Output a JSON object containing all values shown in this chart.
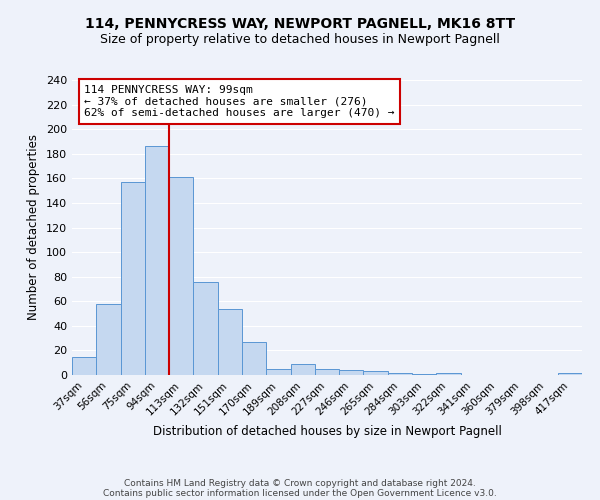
{
  "title1": "114, PENNYCRESS WAY, NEWPORT PAGNELL, MK16 8TT",
  "title2": "Size of property relative to detached houses in Newport Pagnell",
  "xlabel": "Distribution of detached houses by size in Newport Pagnell",
  "ylabel": "Number of detached properties",
  "bin_labels": [
    "37sqm",
    "56sqm",
    "75sqm",
    "94sqm",
    "113sqm",
    "132sqm",
    "151sqm",
    "170sqm",
    "189sqm",
    "208sqm",
    "227sqm",
    "246sqm",
    "265sqm",
    "284sqm",
    "303sqm",
    "322sqm",
    "341sqm",
    "360sqm",
    "379sqm",
    "398sqm",
    "417sqm"
  ],
  "bar_heights": [
    15,
    58,
    157,
    186,
    161,
    76,
    54,
    27,
    5,
    9,
    5,
    4,
    3,
    2,
    1,
    2,
    0,
    0,
    0,
    0,
    2
  ],
  "bar_color": "#c5d8f0",
  "bar_edge_color": "#5a96d4",
  "vline_x": 3.5,
  "vline_color": "#cc0000",
  "annot_line1": "114 PENNYCRESS WAY: 99sqm",
  "annot_line2": "← 37% of detached houses are smaller (276)",
  "annot_line3": "62% of semi-detached houses are larger (470) →",
  "annot_box_fc": "#ffffff",
  "annot_box_ec": "#cc0000",
  "ylim": [
    0,
    240
  ],
  "yticks": [
    0,
    20,
    40,
    60,
    80,
    100,
    120,
    140,
    160,
    180,
    200,
    220,
    240
  ],
  "footer1": "Contains HM Land Registry data © Crown copyright and database right 2024.",
  "footer2": "Contains public sector information licensed under the Open Government Licence v3.0.",
  "bg_color": "#eef2fa",
  "grid_color": "#ffffff",
  "title1_fontsize": 10,
  "title2_fontsize": 9
}
